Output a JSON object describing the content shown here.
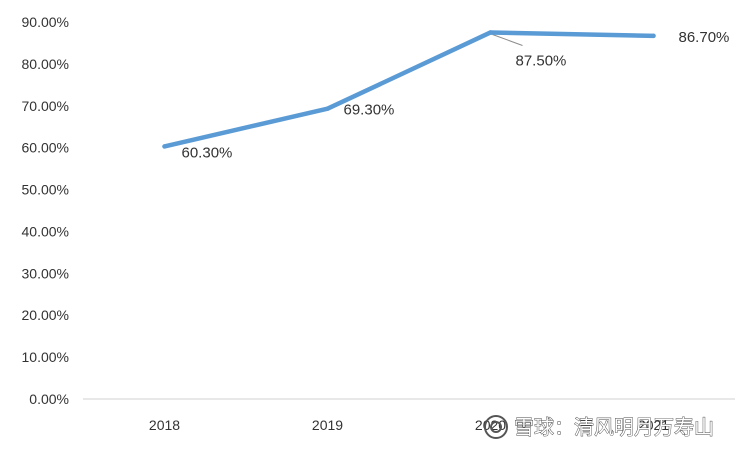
{
  "chart_data": {
    "type": "line",
    "title": "",
    "xlabel": "",
    "ylabel": "",
    "categories": [
      "2018",
      "2019",
      "2020",
      "2021"
    ],
    "series": [
      {
        "values": [
          60.3,
          69.3,
          87.5,
          86.7
        ],
        "color": "#5B9BD5"
      }
    ],
    "data_labels": [
      "60.30%",
      "69.30%",
      "87.50%",
      "86.70%"
    ],
    "y_ticks": [
      "0.00%",
      "10.00%",
      "20.00%",
      "30.00%",
      "40.00%",
      "50.00%",
      "60.00%",
      "70.00%",
      "80.00%",
      "90.00%"
    ],
    "ylim": [
      0,
      90
    ],
    "grid": false,
    "legend": "none"
  },
  "watermark": {
    "text": "雪球：清风明月万寿山",
    "icon": "snowball-logo-icon"
  }
}
